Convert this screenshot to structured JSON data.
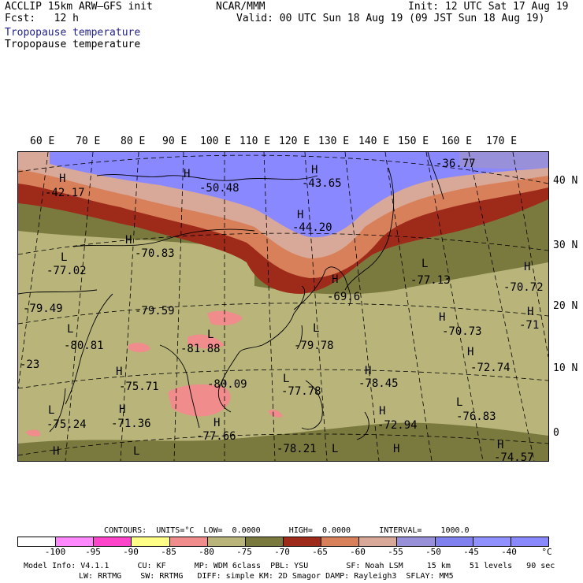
{
  "header": {
    "model": "ACCLIP 15km ARW–GFS init",
    "forecast": "Fcst:   12 h",
    "org": "NCAR/MMM",
    "init": "Init: 12 UTC Sat 17 Aug 19",
    "valid": "Valid: 00 UTC Sun 18 Aug 19 (09 JST Sun 18 Aug 19)",
    "field1": "Tropopause temperature",
    "field2": "Tropopause temperature"
  },
  "map": {
    "lon_labels": [
      "60 E",
      "70 E",
      "80 E",
      "90 E",
      "100 E",
      "110 E",
      "120 E",
      "130 E",
      "140 E",
      "150 E",
      "160 E",
      "170 E"
    ],
    "lat_labels": [
      "40 N",
      "30 N",
      "20 N",
      "10 N",
      "0"
    ],
    "H_labels": [
      {
        "mark": "H",
        "value": "-42.17"
      },
      {
        "mark": "H",
        "value": "-50.48"
      },
      {
        "mark": "H",
        "value": "-43.65"
      },
      {
        "mark": "H",
        "value": "-44.20"
      },
      {
        "mark": "",
        "value": "-36.77"
      },
      {
        "mark": "H",
        "value": "-70.83"
      },
      {
        "mark": "L",
        "value": "-77.02"
      },
      {
        "mark": "L",
        "value": "-77.13"
      },
      {
        "mark": "H",
        "value": "-70.72"
      },
      {
        "mark": "H",
        "value": "-71"
      },
      {
        "mark": "H",
        "value": "-69.6"
      },
      {
        "mark": "",
        "value": "-79.49"
      },
      {
        "mark": "",
        "value": "-79.59"
      },
      {
        "mark": "L",
        "value": "-80.81"
      },
      {
        "mark": "L",
        "value": "-81.88"
      },
      {
        "mark": "L",
        "value": "-79.78"
      },
      {
        "mark": "H",
        "value": "-70.73"
      },
      {
        "mark": "H",
        "value": "-72.74"
      },
      {
        "mark": "",
        "value": "-23"
      },
      {
        "mark": "H",
        "value": "-75.71"
      },
      {
        "mark": "",
        "value": "-80.09"
      },
      {
        "mark": "L",
        "value": "-77.78"
      },
      {
        "mark": "H",
        "value": "-78.45"
      },
      {
        "mark": "L",
        "value": "-76.83"
      },
      {
        "mark": "L",
        "value": "-75.24"
      },
      {
        "mark": "H",
        "value": "-71.36"
      },
      {
        "mark": "H",
        "value": "-77.66"
      },
      {
        "mark": "H",
        "value": "-72.94"
      },
      {
        "mark": "",
        "value": "-78.21"
      },
      {
        "mark": "H",
        "value": "-74.57"
      }
    ],
    "bottom_marks": [
      "H",
      "L",
      "H",
      "L"
    ]
  },
  "colors": {
    "c_lt_-100": "#ffffff",
    "c_-100_-95": "#ff88ff",
    "c_-95_-90": "#ff44cc",
    "c_-90_-85": "#ffff88",
    "c_-85_-80": "#f08c8c",
    "c_-80_-75": "#b8b47a",
    "c_-75_-70": "#7b7a3e",
    "c_-70_-65": "#9e2a1a",
    "c_-65_-60": "#d8805a",
    "c_-60_-55": "#d8a898",
    "c_-55_-50": "#9890d8",
    "c_-50_-45": "#8080ee",
    "c_-45_-40": "#9090ff",
    "c_gt_-40": "#8a88ff"
  },
  "legend": {
    "contours": "CONTOURS:  UNITS=°C  LOW=  0.0000      HIGH=  0.0000      INTERVAL=    1000.0",
    "ticks": [
      "-100",
      "-95",
      "-90",
      "-85",
      "-80",
      "-75",
      "-70",
      "-65",
      "-60",
      "-55",
      "-50",
      "-45",
      "-40",
      "°C"
    ]
  },
  "footer": {
    "line1": "Model Info: V4.1.1      CU: KF      MP: WDM 6class  PBL: YSU        SF: Noah LSM     15 km    51 levels   90 sec",
    "line2": "LW: RRTMG    SW: RRTMG   DIFF: simple KM: 2D Smagor DAMP: Rayleigh3  SFLAY: MM5"
  }
}
